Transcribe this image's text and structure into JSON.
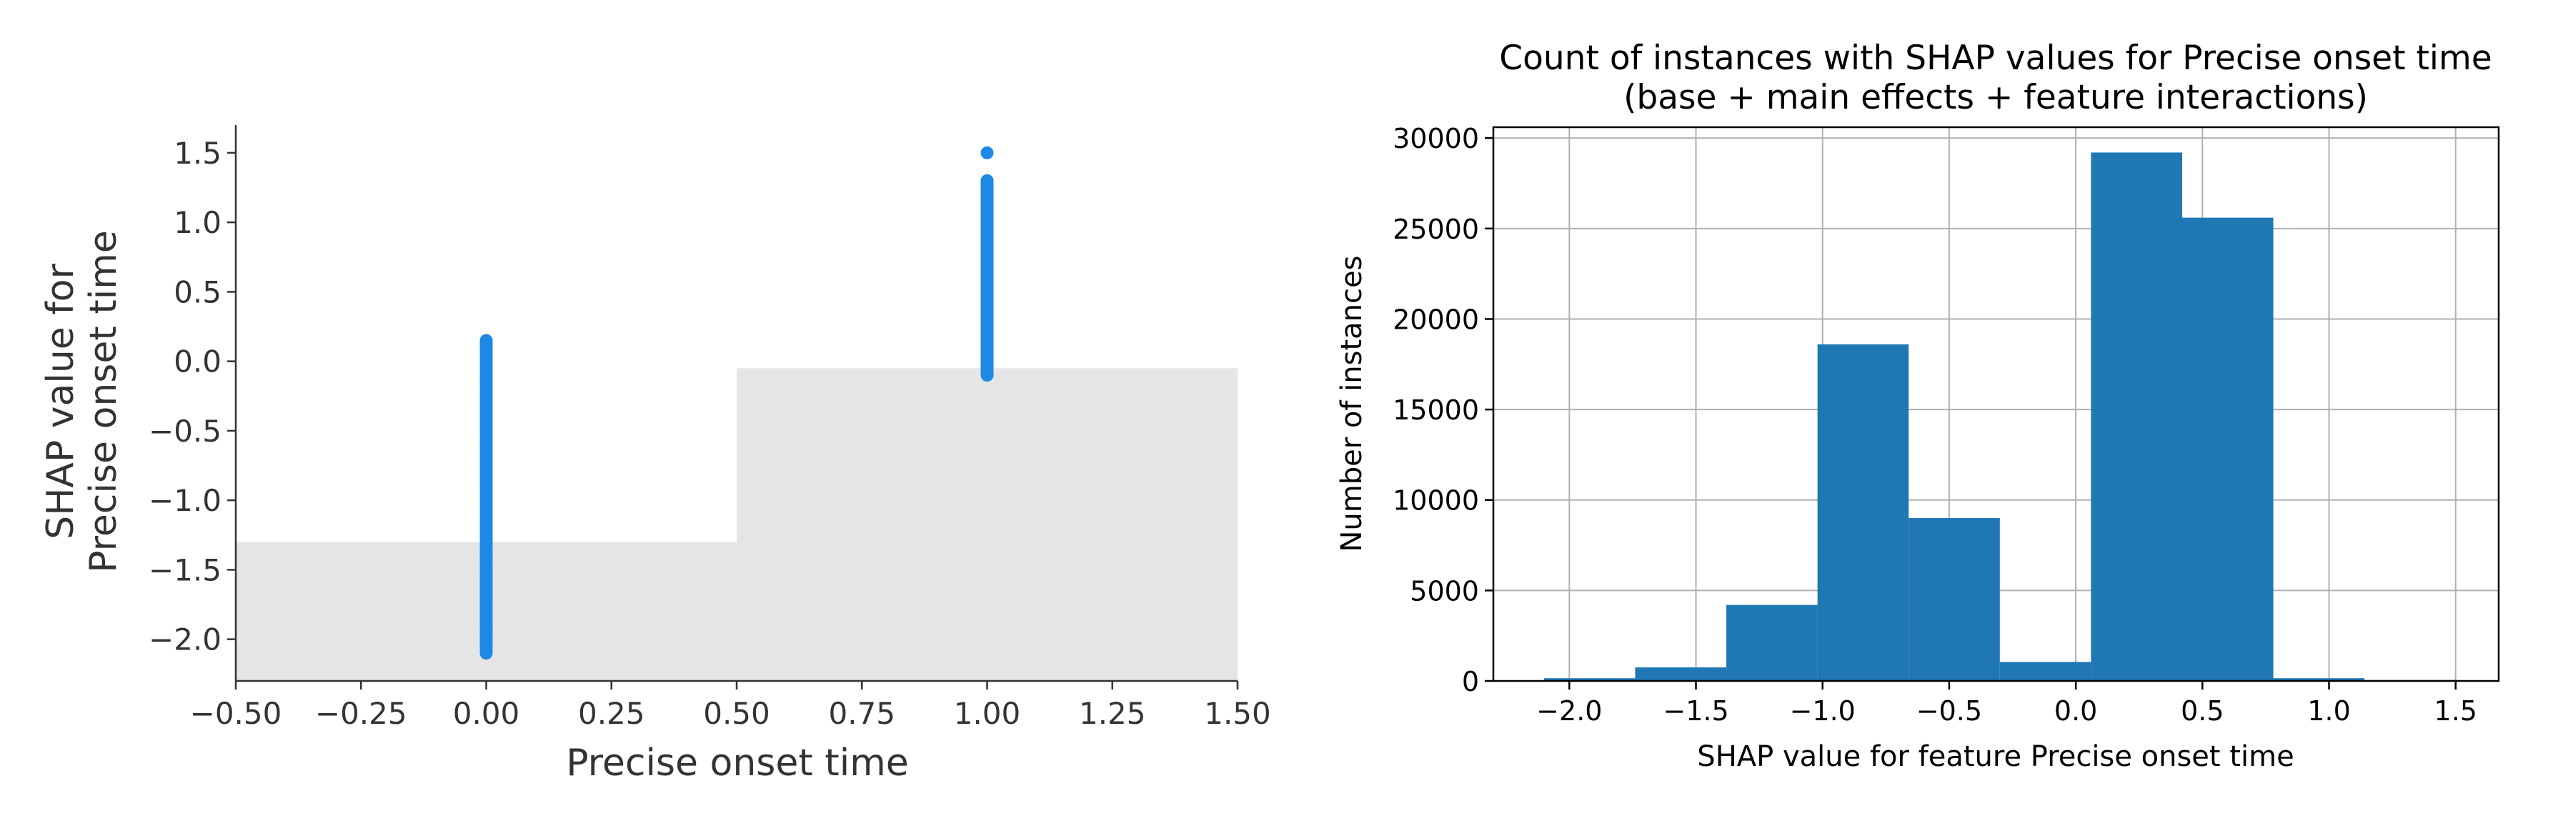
{
  "chart_data": [
    {
      "type": "scatter",
      "title": "",
      "xlabel": "Precise onset time",
      "ylabel_lines": [
        "SHAP value for",
        "Precise onset time"
      ],
      "xlim": [
        -0.5,
        1.5
      ],
      "ylim": [
        -2.3,
        1.7
      ],
      "x_ticks": [
        -0.5,
        -0.25,
        0.0,
        0.25,
        0.5,
        0.75,
        1.0,
        1.25,
        1.5
      ],
      "x_tick_labels": [
        "−0.50",
        "−0.25",
        "0.00",
        "0.25",
        "0.50",
        "0.75",
        "1.00",
        "1.25",
        "1.50"
      ],
      "y_ticks": [
        -2.0,
        -1.5,
        -1.0,
        -0.5,
        0.0,
        0.5,
        1.0,
        1.5
      ],
      "y_tick_labels": [
        "−2.0",
        "−1.5",
        "−1.0",
        "−0.5",
        "0.0",
        "0.5",
        "1.0",
        "1.5"
      ],
      "point_color": "#1E88E5",
      "series": [
        {
          "x": 0.0,
          "y_min": -2.1,
          "y_max": 0.15
        },
        {
          "x": 1.0,
          "y_min": -0.1,
          "y_max": 1.3,
          "outliers": [
            1.5
          ]
        }
      ],
      "background_histogram": {
        "color": "#e5e5e5",
        "bins": [
          {
            "x_start": -0.5,
            "x_end": 0.5,
            "value": 0.8
          },
          {
            "x_start": 0.5,
            "x_end": 1.5,
            "value": 1.8
          }
        ],
        "value_scale_max": 3.2
      },
      "grid": false
    },
    {
      "type": "bar",
      "title_lines": [
        "Count of instances with SHAP values for Precise onset time",
        "(base + main effects + feature interactions)"
      ],
      "xlabel": "SHAP value for feature Precise onset time",
      "ylabel": "Number of instances",
      "xlim": [
        -2.3,
        1.67
      ],
      "ylim": [
        0,
        30600
      ],
      "x_ticks": [
        -2.0,
        -1.5,
        -1.0,
        -0.5,
        0.0,
        0.5,
        1.0,
        1.5
      ],
      "x_tick_labels": [
        "−2.0",
        "−1.5",
        "−1.0",
        "−0.5",
        "0.0",
        "0.5",
        "1.0",
        "1.5"
      ],
      "y_ticks": [
        0,
        5000,
        10000,
        15000,
        20000,
        25000,
        30000
      ],
      "y_tick_labels": [
        "0",
        "5000",
        "10000",
        "15000",
        "20000",
        "25000",
        "30000"
      ],
      "bar_color": "#1f77b4",
      "bin_edges": [
        -2.1,
        -1.74,
        -1.38,
        -1.02,
        -0.66,
        -0.3,
        0.06,
        0.42,
        0.78,
        1.14,
        1.5
      ],
      "values": [
        150,
        750,
        4200,
        18600,
        9000,
        1050,
        29200,
        25600,
        150,
        50
      ],
      "grid": true
    }
  ]
}
